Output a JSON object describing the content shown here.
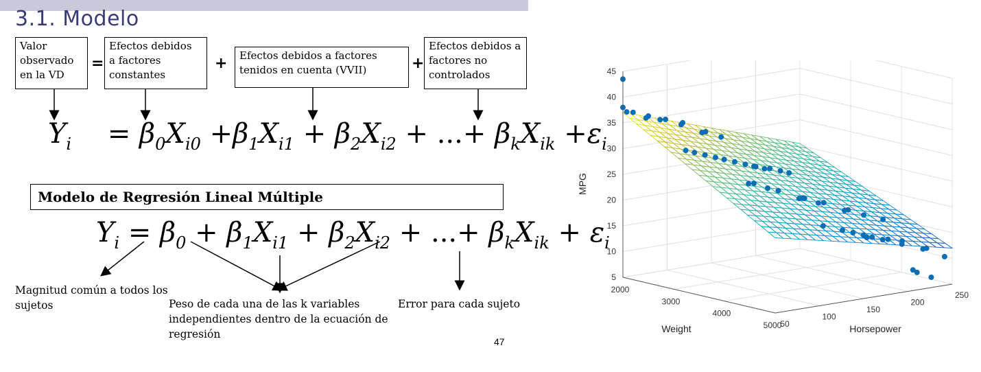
{
  "slide": {
    "title": "3.1. Modelo",
    "boxes": {
      "observed": "Valor\nobservado\nen la VD",
      "constant": "Efectos debidos\na factores\nconstantes",
      "considered": "Efectos debidos a factores\ntenidos en cuenta (VVII)",
      "uncontrolled": "Efectos debidos a\nfactores no\ncontrolados"
    },
    "operators": {
      "equals": "=",
      "plus1": "+",
      "plus2": "+"
    },
    "heading": "Modelo de Regresión Lineal Múltiple",
    "notes": {
      "common": "Magnitud común a todos los\nsujetos",
      "weights": "Peso de cada una de las k variables\nindependientes dentro de la ecuación de\nregresión",
      "error": "Error para cada sujeto"
    },
    "page_number": "47"
  },
  "chart_data": {
    "type": "scatter",
    "subtype": "3d-surface-with-points",
    "zlabel": "MPG",
    "xlabel": "Weight",
    "ylabel": "Horsepower",
    "z_ticks": [
      "5",
      "10",
      "15",
      "20",
      "25",
      "30",
      "35",
      "40",
      "45"
    ],
    "x_ticks": [
      "2000",
      "3000",
      "4000",
      "5000"
    ],
    "y_ticks": [
      "50",
      "100",
      "150",
      "200",
      "250"
    ],
    "zlim": [
      5,
      45
    ],
    "xlim": [
      2000,
      5000
    ],
    "ylim": [
      50,
      250
    ],
    "grid": true,
    "colormap": "parula",
    "point_color": "#0b6db4",
    "surface": {
      "type": "fitted plane",
      "z_at_low_weight_low_hp": 37,
      "z_at_high_weight_high_hp": 8
    },
    "points_mpg": [
      43.5,
      38,
      37.5,
      37,
      36,
      36,
      35.8,
      35.5,
      35.2,
      34,
      33,
      32,
      31.5,
      30.5,
      30,
      29.5,
      29,
      28.5,
      28,
      27.5,
      27,
      26.5,
      26,
      26,
      25.5,
      25,
      24.5,
      24,
      24,
      23,
      22,
      21,
      20.5,
      20.5,
      20,
      19,
      18,
      17.5,
      17,
      16.5,
      16,
      15,
      15,
      14.5,
      14,
      13.5,
      13,
      13,
      13,
      12,
      11,
      10,
      9,
      8,
      7
    ]
  }
}
